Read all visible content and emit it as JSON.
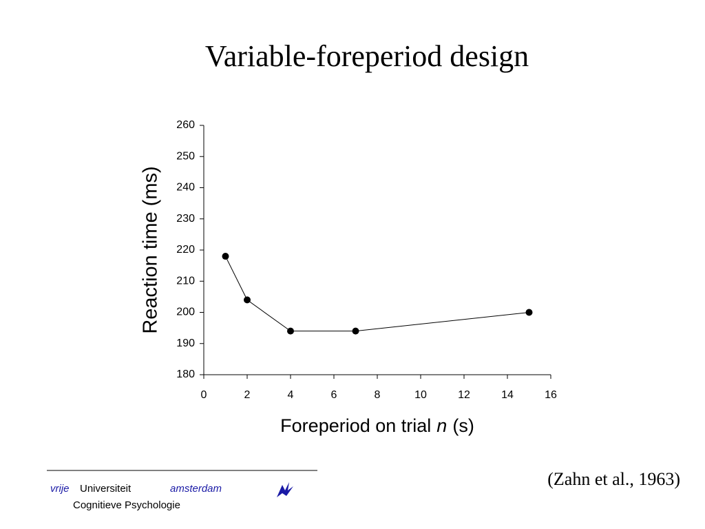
{
  "chart_data": {
    "type": "line",
    "title": "Variable-foreperiod design",
    "x_label": {
      "before": "Foreperiod on trial",
      "italic": "n",
      "after": "(s)"
    },
    "y_label": "Reaction time (ms)",
    "x": [
      1,
      2,
      4,
      7,
      15
    ],
    "series": [
      {
        "color": "#000000",
        "values": [
          218,
          204,
          194,
          194,
          200
        ]
      }
    ],
    "xlim": [
      0,
      16
    ],
    "xticks": [
      0,
      2,
      4,
      6,
      8,
      10,
      12,
      14,
      16
    ],
    "ylim": [
      180,
      260
    ],
    "yticks": [
      180,
      190,
      200,
      210,
      220,
      230,
      240,
      250,
      260
    ],
    "grid": false,
    "source": "(Zahn et al., 1963)"
  },
  "footer": {
    "vrije": "vrije",
    "universiteit": "Universiteit",
    "amsterdam": "amsterdam",
    "department": "Cognitieve Psychologie"
  }
}
